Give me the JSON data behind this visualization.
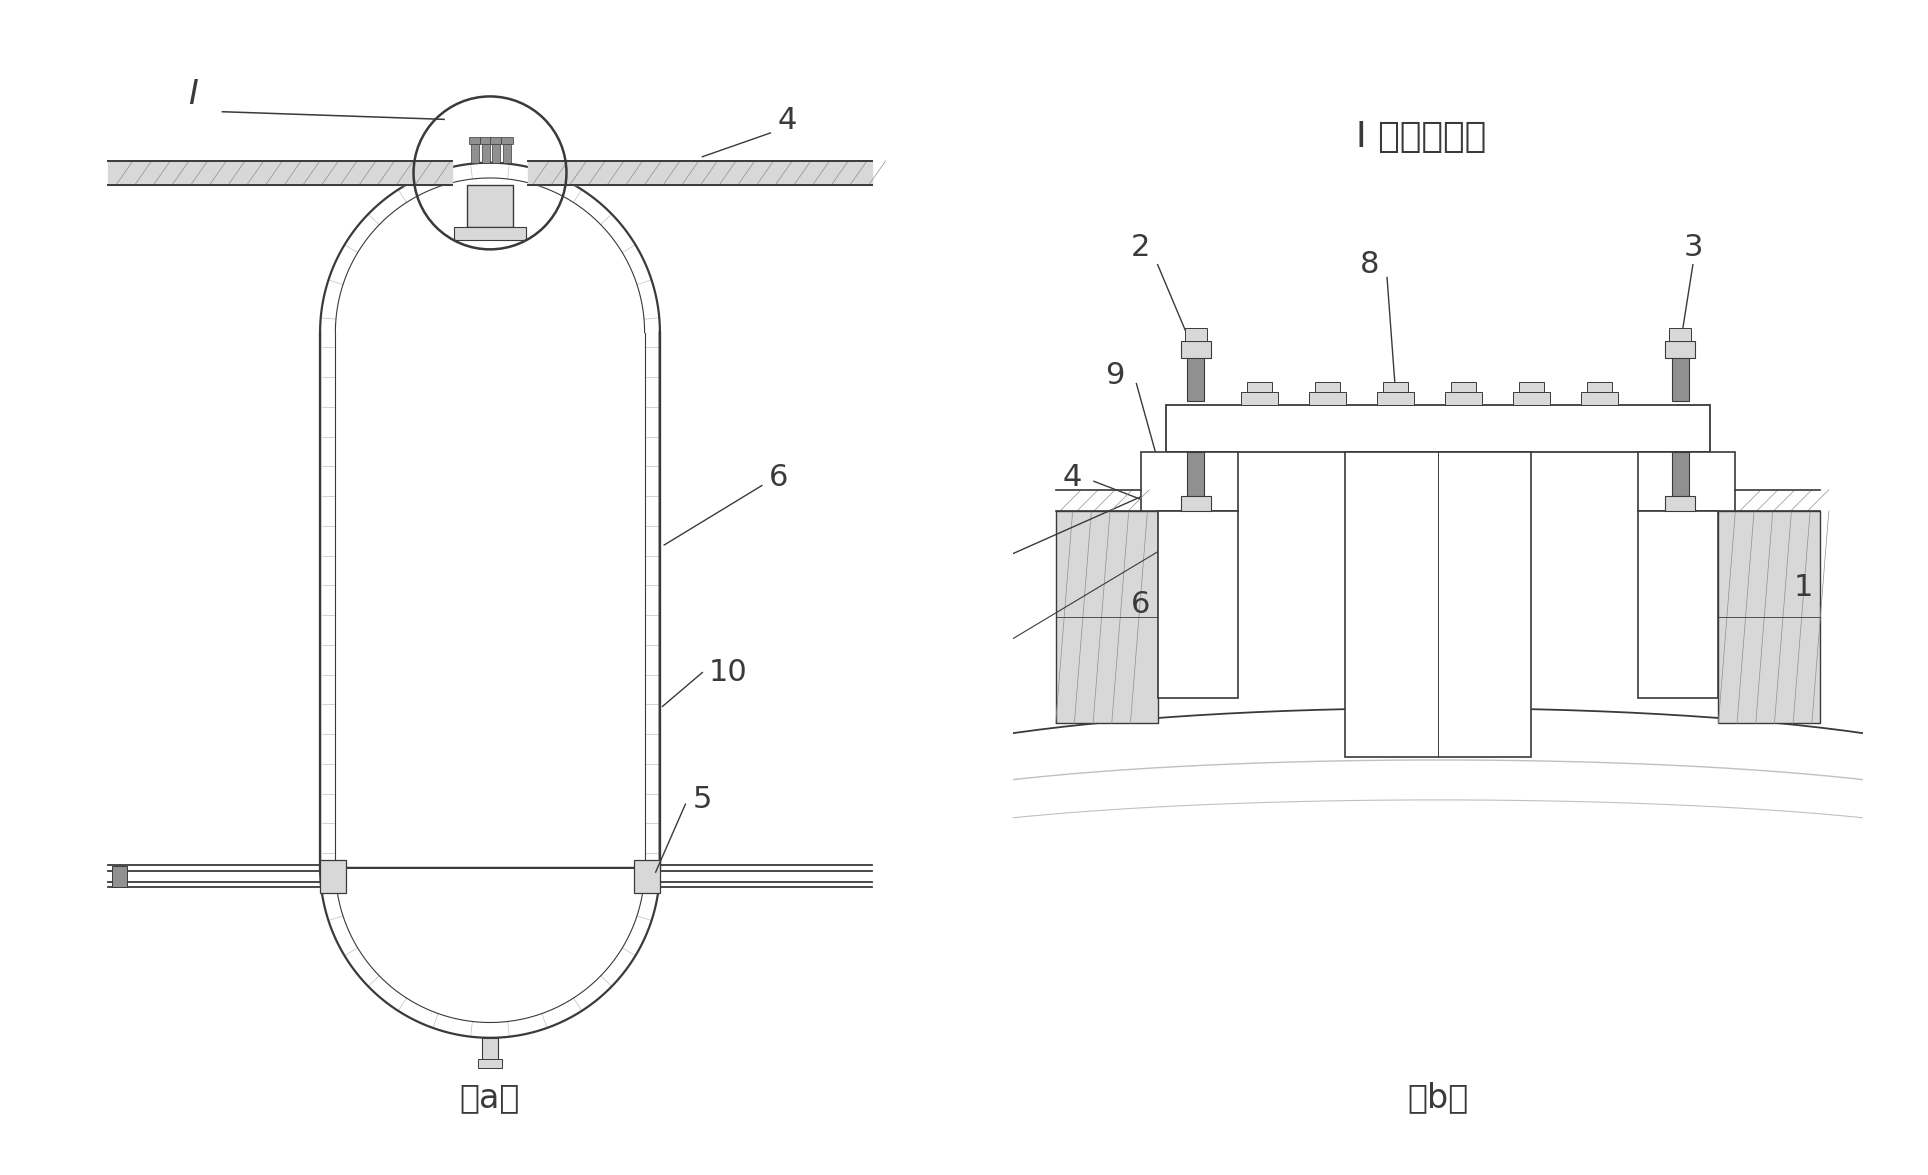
{
  "bg_color": "#ffffff",
  "line_color": "#3a3a3a",
  "gray1": "#c0c0c0",
  "gray2": "#909090",
  "gray3": "#d8d8d8",
  "fill_white": "#f5f5f5",
  "label_a": "（a）",
  "label_b": "（b）",
  "title_b": "I 处局部放大",
  "font_size_label": 24,
  "font_size_num": 22,
  "font_size_title": 26
}
